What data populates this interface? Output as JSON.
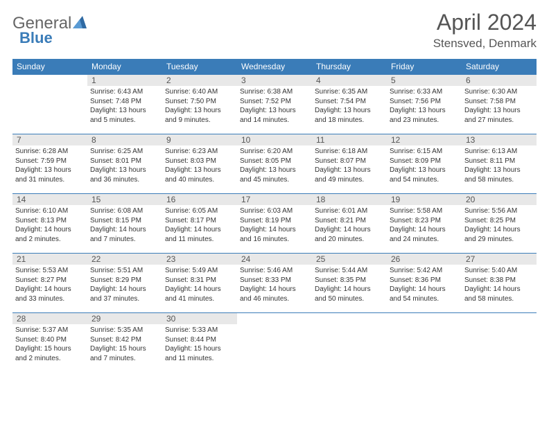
{
  "brand": {
    "part1": "General",
    "part2": "Blue"
  },
  "title": "April 2024",
  "location": "Stensved, Denmark",
  "colors": {
    "header_bg": "#3a7cb8",
    "header_text": "#ffffff",
    "daynum_bg": "#e8e8e8",
    "border": "#3a7cb8",
    "text": "#333333",
    "title_text": "#555555"
  },
  "day_headers": [
    "Sunday",
    "Monday",
    "Tuesday",
    "Wednesday",
    "Thursday",
    "Friday",
    "Saturday"
  ],
  "weeks": [
    [
      {
        "blank": true
      },
      {
        "n": "1",
        "sr": "Sunrise: 6:43 AM",
        "ss": "Sunset: 7:48 PM",
        "d1": "Daylight: 13 hours",
        "d2": "and 5 minutes."
      },
      {
        "n": "2",
        "sr": "Sunrise: 6:40 AM",
        "ss": "Sunset: 7:50 PM",
        "d1": "Daylight: 13 hours",
        "d2": "and 9 minutes."
      },
      {
        "n": "3",
        "sr": "Sunrise: 6:38 AM",
        "ss": "Sunset: 7:52 PM",
        "d1": "Daylight: 13 hours",
        "d2": "and 14 minutes."
      },
      {
        "n": "4",
        "sr": "Sunrise: 6:35 AM",
        "ss": "Sunset: 7:54 PM",
        "d1": "Daylight: 13 hours",
        "d2": "and 18 minutes."
      },
      {
        "n": "5",
        "sr": "Sunrise: 6:33 AM",
        "ss": "Sunset: 7:56 PM",
        "d1": "Daylight: 13 hours",
        "d2": "and 23 minutes."
      },
      {
        "n": "6",
        "sr": "Sunrise: 6:30 AM",
        "ss": "Sunset: 7:58 PM",
        "d1": "Daylight: 13 hours",
        "d2": "and 27 minutes."
      }
    ],
    [
      {
        "n": "7",
        "sr": "Sunrise: 6:28 AM",
        "ss": "Sunset: 7:59 PM",
        "d1": "Daylight: 13 hours",
        "d2": "and 31 minutes."
      },
      {
        "n": "8",
        "sr": "Sunrise: 6:25 AM",
        "ss": "Sunset: 8:01 PM",
        "d1": "Daylight: 13 hours",
        "d2": "and 36 minutes."
      },
      {
        "n": "9",
        "sr": "Sunrise: 6:23 AM",
        "ss": "Sunset: 8:03 PM",
        "d1": "Daylight: 13 hours",
        "d2": "and 40 minutes."
      },
      {
        "n": "10",
        "sr": "Sunrise: 6:20 AM",
        "ss": "Sunset: 8:05 PM",
        "d1": "Daylight: 13 hours",
        "d2": "and 45 minutes."
      },
      {
        "n": "11",
        "sr": "Sunrise: 6:18 AM",
        "ss": "Sunset: 8:07 PM",
        "d1": "Daylight: 13 hours",
        "d2": "and 49 minutes."
      },
      {
        "n": "12",
        "sr": "Sunrise: 6:15 AM",
        "ss": "Sunset: 8:09 PM",
        "d1": "Daylight: 13 hours",
        "d2": "and 54 minutes."
      },
      {
        "n": "13",
        "sr": "Sunrise: 6:13 AM",
        "ss": "Sunset: 8:11 PM",
        "d1": "Daylight: 13 hours",
        "d2": "and 58 minutes."
      }
    ],
    [
      {
        "n": "14",
        "sr": "Sunrise: 6:10 AM",
        "ss": "Sunset: 8:13 PM",
        "d1": "Daylight: 14 hours",
        "d2": "and 2 minutes."
      },
      {
        "n": "15",
        "sr": "Sunrise: 6:08 AM",
        "ss": "Sunset: 8:15 PM",
        "d1": "Daylight: 14 hours",
        "d2": "and 7 minutes."
      },
      {
        "n": "16",
        "sr": "Sunrise: 6:05 AM",
        "ss": "Sunset: 8:17 PM",
        "d1": "Daylight: 14 hours",
        "d2": "and 11 minutes."
      },
      {
        "n": "17",
        "sr": "Sunrise: 6:03 AM",
        "ss": "Sunset: 8:19 PM",
        "d1": "Daylight: 14 hours",
        "d2": "and 16 minutes."
      },
      {
        "n": "18",
        "sr": "Sunrise: 6:01 AM",
        "ss": "Sunset: 8:21 PM",
        "d1": "Daylight: 14 hours",
        "d2": "and 20 minutes."
      },
      {
        "n": "19",
        "sr": "Sunrise: 5:58 AM",
        "ss": "Sunset: 8:23 PM",
        "d1": "Daylight: 14 hours",
        "d2": "and 24 minutes."
      },
      {
        "n": "20",
        "sr": "Sunrise: 5:56 AM",
        "ss": "Sunset: 8:25 PM",
        "d1": "Daylight: 14 hours",
        "d2": "and 29 minutes."
      }
    ],
    [
      {
        "n": "21",
        "sr": "Sunrise: 5:53 AM",
        "ss": "Sunset: 8:27 PM",
        "d1": "Daylight: 14 hours",
        "d2": "and 33 minutes."
      },
      {
        "n": "22",
        "sr": "Sunrise: 5:51 AM",
        "ss": "Sunset: 8:29 PM",
        "d1": "Daylight: 14 hours",
        "d2": "and 37 minutes."
      },
      {
        "n": "23",
        "sr": "Sunrise: 5:49 AM",
        "ss": "Sunset: 8:31 PM",
        "d1": "Daylight: 14 hours",
        "d2": "and 41 minutes."
      },
      {
        "n": "24",
        "sr": "Sunrise: 5:46 AM",
        "ss": "Sunset: 8:33 PM",
        "d1": "Daylight: 14 hours",
        "d2": "and 46 minutes."
      },
      {
        "n": "25",
        "sr": "Sunrise: 5:44 AM",
        "ss": "Sunset: 8:35 PM",
        "d1": "Daylight: 14 hours",
        "d2": "and 50 minutes."
      },
      {
        "n": "26",
        "sr": "Sunrise: 5:42 AM",
        "ss": "Sunset: 8:36 PM",
        "d1": "Daylight: 14 hours",
        "d2": "and 54 minutes."
      },
      {
        "n": "27",
        "sr": "Sunrise: 5:40 AM",
        "ss": "Sunset: 8:38 PM",
        "d1": "Daylight: 14 hours",
        "d2": "and 58 minutes."
      }
    ],
    [
      {
        "n": "28",
        "sr": "Sunrise: 5:37 AM",
        "ss": "Sunset: 8:40 PM",
        "d1": "Daylight: 15 hours",
        "d2": "and 2 minutes."
      },
      {
        "n": "29",
        "sr": "Sunrise: 5:35 AM",
        "ss": "Sunset: 8:42 PM",
        "d1": "Daylight: 15 hours",
        "d2": "and 7 minutes."
      },
      {
        "n": "30",
        "sr": "Sunrise: 5:33 AM",
        "ss": "Sunset: 8:44 PM",
        "d1": "Daylight: 15 hours",
        "d2": "and 11 minutes."
      },
      {
        "eom": true
      },
      {
        "eom": true
      },
      {
        "eom": true
      },
      {
        "eom": true
      }
    ]
  ]
}
